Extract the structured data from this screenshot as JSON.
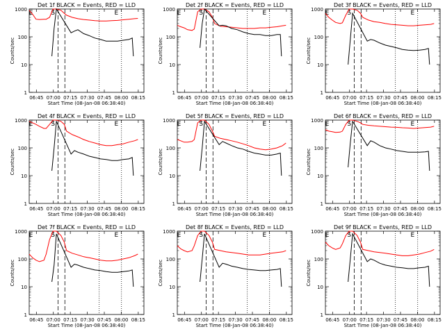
{
  "chart_data": [
    {
      "type": "line",
      "title": "Det 1f BLACK = Events, RED = LLD",
      "xlabel": "Start Time (08-Jan-08 06:38:40)",
      "ylabel": "Counts/sec",
      "yscale": "log",
      "ylim": [
        1,
        1000
      ],
      "y_ticks": [
        "1",
        "10",
        "100",
        "1000"
      ],
      "x_ticks": [
        "06:45",
        "07:00",
        "07:15",
        "07:30",
        "07:45",
        "08:00",
        "08:15"
      ],
      "markers": [
        "E",
        "S",
        "E"
      ],
      "series": [
        {
          "color": "#ff0000",
          "x_min": [
            0,
            3,
            6,
            9,
            13,
            15,
            18,
            21,
            24,
            28,
            31,
            33,
            38,
            43,
            48,
            53,
            58,
            63,
            68,
            73,
            78,
            83,
            88,
            93,
            96
          ],
          "y": [
            900,
            650,
            430,
            420,
            430,
            430,
            500,
            1000,
            1000,
            900,
            700,
            600,
            500,
            450,
            420,
            400,
            380,
            370,
            370,
            380,
            390,
            410,
            430,
            450,
            460
          ]
        },
        {
          "color": "#000000",
          "x_min": [
            20,
            22,
            24,
            37,
            40,
            43,
            48,
            53,
            58,
            63,
            68,
            73,
            78,
            83,
            88,
            91,
            92
          ],
          "y": [
            20,
            200,
            1000,
            140,
            160,
            180,
            130,
            110,
            90,
            80,
            70,
            70,
            70,
            75,
            80,
            90,
            20
          ]
        }
      ]
    },
    {
      "type": "line",
      "title": "Det 2f BLACK = Events, RED = LLD",
      "xlabel": "Start Time (08-Jan-08 06:38:40)",
      "ylabel": "Counts/sec",
      "yscale": "log",
      "ylim": [
        1,
        1000
      ],
      "y_ticks": [
        "1",
        "10",
        "100",
        "1000"
      ],
      "x_ticks": [
        "06:45",
        "07:00",
        "07:15",
        "07:30",
        "07:45",
        "08:00",
        "08:15"
      ],
      "markers": [
        "E",
        "S",
        "E"
      ],
      "series": [
        {
          "color": "#ff0000",
          "x_min": [
            0,
            3,
            6,
            9,
            13,
            15,
            18,
            21,
            24,
            28,
            31,
            33,
            38,
            43,
            48,
            53,
            58,
            63,
            68,
            73,
            78,
            83,
            88,
            93,
            96
          ],
          "y": [
            260,
            230,
            210,
            180,
            170,
            190,
            800,
            1000,
            1000,
            800,
            500,
            300,
            240,
            230,
            220,
            210,
            200,
            200,
            200,
            210,
            210,
            220,
            230,
            250,
            260
          ]
        },
        {
          "color": "#000000",
          "x_min": [
            20,
            22,
            24,
            37,
            40,
            43,
            48,
            53,
            58,
            63,
            68,
            73,
            78,
            83,
            88,
            91,
            92
          ],
          "y": [
            40,
            300,
            1000,
            250,
            260,
            250,
            200,
            180,
            150,
            130,
            120,
            120,
            110,
            110,
            120,
            120,
            20
          ]
        }
      ]
    },
    {
      "type": "line",
      "title": "Det 3f BLACK = Events, RED = LLD",
      "xlabel": "Start Time (08-Jan-08 06:38:40)",
      "ylabel": "Counts/sec",
      "yscale": "log",
      "ylim": [
        1,
        1000
      ],
      "y_ticks": [
        "1",
        "10",
        "100",
        "1000"
      ],
      "x_ticks": [
        "06:45",
        "07:00",
        "07:15",
        "07:30",
        "07:45",
        "08:00",
        "08:15"
      ],
      "markers": [
        "E",
        "S",
        "E"
      ],
      "series": [
        {
          "color": "#ff0000",
          "x_min": [
            0,
            3,
            6,
            9,
            13,
            15,
            18,
            21,
            24,
            28,
            31,
            33,
            38,
            43,
            48,
            53,
            58,
            63,
            68,
            73,
            78,
            83,
            88,
            93,
            96
          ],
          "y": [
            700,
            500,
            400,
            330,
            300,
            320,
            600,
            1000,
            1000,
            900,
            700,
            500,
            400,
            350,
            330,
            300,
            280,
            270,
            260,
            250,
            250,
            260,
            270,
            280,
            300
          ]
        },
        {
          "color": "#000000",
          "x_min": [
            20,
            22,
            24,
            37,
            40,
            43,
            48,
            53,
            58,
            63,
            68,
            73,
            78,
            83,
            88,
            91,
            92
          ],
          "y": [
            10,
            80,
            700,
            70,
            80,
            75,
            60,
            50,
            45,
            40,
            35,
            33,
            32,
            33,
            35,
            38,
            10
          ]
        }
      ]
    },
    {
      "type": "line",
      "title": "Det 4f BLACK = Events, RED = LLD",
      "xlabel": "Start Time (08-Jan-08 06:38:40)",
      "ylabel": "Counts/sec",
      "yscale": "log",
      "ylim": [
        1,
        1000
      ],
      "y_ticks": [
        "1",
        "10",
        "100",
        "1000"
      ],
      "x_ticks": [
        "06:45",
        "07:00",
        "07:15",
        "07:30",
        "07:45",
        "08:00",
        "08:15"
      ],
      "markers": [
        "E",
        "S",
        "E"
      ],
      "series": [
        {
          "color": "#ff0000",
          "x_min": [
            0,
            3,
            6,
            9,
            13,
            15,
            18,
            21,
            24,
            28,
            31,
            33,
            38,
            43,
            48,
            53,
            58,
            63,
            68,
            73,
            78,
            83,
            88,
            93,
            96
          ],
          "y": [
            900,
            800,
            700,
            600,
            500,
            500,
            700,
            1000,
            1000,
            900,
            700,
            400,
            300,
            250,
            200,
            170,
            150,
            130,
            120,
            120,
            130,
            140,
            160,
            180,
            200
          ]
        },
        {
          "color": "#000000",
          "x_min": [
            20,
            22,
            24,
            37,
            40,
            43,
            48,
            53,
            58,
            63,
            68,
            73,
            78,
            83,
            88,
            91,
            92
          ],
          "y": [
            15,
            100,
            900,
            60,
            80,
            70,
            60,
            50,
            45,
            40,
            38,
            35,
            35,
            38,
            40,
            45,
            10
          ]
        }
      ]
    },
    {
      "type": "line",
      "title": "Det 5f BLACK = Events, RED = LLD",
      "xlabel": "Start Time (08-Jan-08 06:38:40)",
      "ylabel": "Counts/sec",
      "yscale": "log",
      "ylim": [
        1,
        1000
      ],
      "y_ticks": [
        "1",
        "10",
        "100",
        "1000"
      ],
      "x_ticks": [
        "06:45",
        "07:00",
        "07:15",
        "07:30",
        "07:45",
        "08:00",
        "08:15"
      ],
      "markers": [
        "E",
        "S",
        "E"
      ],
      "series": [
        {
          "color": "#ff0000",
          "x_min": [
            0,
            3,
            6,
            9,
            13,
            15,
            18,
            21,
            24,
            28,
            31,
            33,
            38,
            43,
            48,
            53,
            58,
            63,
            68,
            73,
            78,
            83,
            88,
            93,
            96
          ],
          "y": [
            200,
            180,
            160,
            160,
            170,
            200,
            800,
            1000,
            1000,
            700,
            400,
            260,
            220,
            200,
            180,
            160,
            140,
            120,
            100,
            90,
            85,
            90,
            100,
            120,
            150
          ]
        },
        {
          "color": "#000000",
          "x_min": [
            20,
            22,
            24,
            37,
            40,
            43,
            48,
            53,
            58,
            63,
            68,
            73,
            78,
            83,
            88,
            91,
            92
          ],
          "y": [
            15,
            100,
            900,
            130,
            170,
            150,
            120,
            100,
            90,
            75,
            65,
            60,
            55,
            55,
            60,
            65,
            10
          ]
        }
      ]
    },
    {
      "type": "line",
      "title": "Det 6f BLACK = Events, RED = LLD",
      "xlabel": "Start Time (08-Jan-08 06:38:40)",
      "ylabel": "Counts/sec",
      "yscale": "log",
      "ylim": [
        1,
        1000
      ],
      "y_ticks": [
        "1",
        "10",
        "100",
        "1000"
      ],
      "x_ticks": [
        "06:45",
        "07:00",
        "07:15",
        "07:30",
        "07:45",
        "08:00",
        "08:15"
      ],
      "markers": [
        "E",
        "S",
        "E"
      ],
      "series": [
        {
          "color": "#ff0000",
          "x_min": [
            0,
            3,
            6,
            9,
            13,
            15,
            18,
            21,
            24,
            28,
            31,
            33,
            38,
            43,
            48,
            53,
            58,
            63,
            68,
            73,
            78,
            83,
            88,
            93,
            96
          ],
          "y": [
            450,
            400,
            380,
            360,
            370,
            400,
            700,
            1000,
            1000,
            900,
            800,
            700,
            650,
            620,
            600,
            580,
            560,
            550,
            530,
            520,
            500,
            520,
            540,
            560,
            600
          ]
        },
        {
          "color": "#000000",
          "x_min": [
            20,
            22,
            24,
            37,
            40,
            43,
            48,
            53,
            58,
            63,
            68,
            73,
            78,
            83,
            88,
            91,
            92
          ],
          "y": [
            20,
            150,
            900,
            120,
            180,
            160,
            120,
            100,
            90,
            80,
            75,
            70,
            70,
            70,
            72,
            75,
            15
          ]
        }
      ]
    },
    {
      "type": "line",
      "title": "Det 7f BLACK = Events, RED = LLD",
      "xlabel": "Start Time (08-Jan-08 06:38:40)",
      "ylabel": "Counts/sec",
      "yscale": "log",
      "ylim": [
        1,
        1000
      ],
      "y_ticks": [
        "1",
        "10",
        "100",
        "1000"
      ],
      "x_ticks": [
        "06:45",
        "07:00",
        "07:15",
        "07:30",
        "07:45",
        "08:00",
        "08:15"
      ],
      "markers": [
        "E",
        "S",
        "E"
      ],
      "series": [
        {
          "color": "#ff0000",
          "x_min": [
            0,
            3,
            6,
            9,
            13,
            15,
            18,
            21,
            24,
            28,
            31,
            33,
            38,
            43,
            48,
            53,
            58,
            63,
            68,
            73,
            78,
            83,
            88,
            93,
            96
          ],
          "y": [
            150,
            110,
            90,
            80,
            90,
            150,
            500,
            1000,
            1000,
            700,
            400,
            200,
            160,
            140,
            120,
            110,
            100,
            90,
            85,
            85,
            90,
            100,
            110,
            130,
            150
          ]
        },
        {
          "color": "#000000",
          "x_min": [
            20,
            22,
            24,
            37,
            40,
            43,
            48,
            53,
            58,
            63,
            68,
            73,
            78,
            83,
            88,
            91,
            92
          ],
          "y": [
            15,
            60,
            800,
            50,
            65,
            60,
            50,
            45,
            40,
            38,
            35,
            33,
            33,
            35,
            37,
            40,
            10
          ]
        }
      ]
    },
    {
      "type": "line",
      "title": "Det 8f BLACK = Events, RED = LLD",
      "xlabel": "Start Time (08-Jan-08 06:38:40)",
      "ylabel": "Counts/sec",
      "yscale": "log",
      "ylim": [
        1,
        1000
      ],
      "y_ticks": [
        "1",
        "10",
        "100",
        "1000"
      ],
      "x_ticks": [
        "06:45",
        "07:00",
        "07:15",
        "07:30",
        "07:45",
        "08:00",
        "08:15"
      ],
      "markers": [
        "E",
        "S",
        "E"
      ],
      "series": [
        {
          "color": "#ff0000",
          "x_min": [
            0,
            3,
            6,
            9,
            13,
            15,
            18,
            21,
            24,
            28,
            31,
            33,
            38,
            43,
            48,
            53,
            58,
            63,
            68,
            73,
            78,
            83,
            88,
            93,
            96
          ],
          "y": [
            300,
            230,
            200,
            180,
            200,
            300,
            700,
            1000,
            1000,
            700,
            400,
            220,
            200,
            180,
            170,
            160,
            150,
            140,
            140,
            140,
            150,
            160,
            170,
            180,
            200
          ]
        },
        {
          "color": "#000000",
          "x_min": [
            20,
            22,
            24,
            37,
            40,
            43,
            48,
            53,
            58,
            63,
            68,
            73,
            78,
            83,
            88,
            91,
            92
          ],
          "y": [
            15,
            100,
            800,
            50,
            70,
            65,
            55,
            50,
            45,
            42,
            40,
            38,
            38,
            40,
            42,
            45,
            10
          ]
        }
      ]
    },
    {
      "type": "line",
      "title": "Det 9f BLACK = Events, RED = LLD",
      "xlabel": "Start Time (08-Jan-08 06:38:40)",
      "ylabel": "Counts/sec",
      "yscale": "log",
      "ylim": [
        1,
        1000
      ],
      "y_ticks": [
        "1",
        "10",
        "100",
        "1000"
      ],
      "x_ticks": [
        "06:45",
        "07:00",
        "07:15",
        "07:30",
        "07:45",
        "08:00",
        "08:15"
      ],
      "markers": [
        "E",
        "S",
        "E"
      ],
      "series": [
        {
          "color": "#ff0000",
          "x_min": [
            0,
            3,
            6,
            9,
            13,
            15,
            18,
            21,
            24,
            28,
            31,
            33,
            38,
            43,
            48,
            53,
            58,
            63,
            68,
            73,
            78,
            83,
            88,
            93,
            96
          ],
          "y": [
            400,
            300,
            250,
            220,
            250,
            350,
            700,
            1000,
            1000,
            700,
            400,
            220,
            200,
            180,
            170,
            160,
            150,
            140,
            130,
            130,
            140,
            150,
            170,
            190,
            220
          ]
        },
        {
          "color": "#000000",
          "x_min": [
            20,
            22,
            24,
            37,
            40,
            43,
            48,
            53,
            58,
            63,
            68,
            73,
            78,
            83,
            88,
            91,
            92
          ],
          "y": [
            15,
            100,
            800,
            80,
            100,
            90,
            70,
            60,
            55,
            50,
            48,
            45,
            45,
            48,
            50,
            55,
            10
          ]
        }
      ]
    }
  ]
}
